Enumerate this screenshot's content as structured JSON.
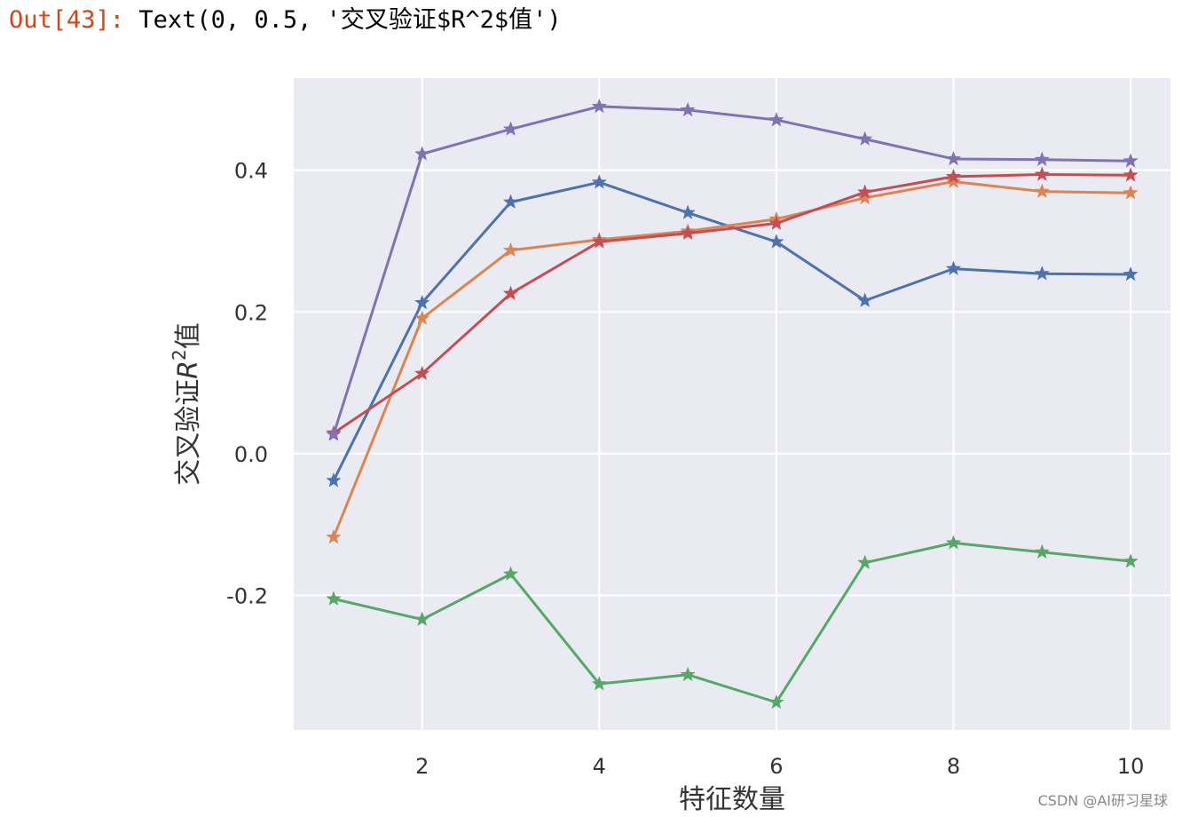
{
  "output": {
    "prompt": "Out[43]:",
    "text": "Text(0, 0.5, '交叉验证$R^2$值')"
  },
  "watermark": "CSDN @AI研习星球",
  "chart_data": {
    "type": "line",
    "xlabel": "特征数量",
    "ylabel_main": "交叉验证",
    "ylabel_italic": "R",
    "ylabel_sup": "2",
    "ylabel_end": "值",
    "xlim": [
      0.55,
      10.45
    ],
    "ylim": [
      -0.39,
      0.53
    ],
    "x_ticks": [
      2,
      4,
      6,
      8,
      10
    ],
    "y_ticks": [
      -0.2,
      0.0,
      0.2,
      0.4
    ],
    "y_tick_labels": [
      "-0.2",
      "0.0",
      "0.2",
      "0.4"
    ],
    "grid": true,
    "marker": "star",
    "background": "#eaeaf2",
    "x": [
      1,
      2,
      3,
      4,
      5,
      6,
      7,
      8,
      9,
      10
    ],
    "series": [
      {
        "color": "#4c72b0",
        "values": [
          -0.038,
          0.213,
          0.355,
          0.383,
          0.34,
          0.299,
          0.216,
          0.261,
          0.254,
          0.253
        ]
      },
      {
        "color": "#dd8452",
        "values": [
          -0.118,
          0.191,
          0.287,
          0.302,
          0.314,
          0.331,
          0.361,
          0.384,
          0.37,
          0.368
        ]
      },
      {
        "color": "#55a868",
        "values": [
          -0.205,
          -0.234,
          -0.17,
          -0.325,
          -0.312,
          -0.351,
          -0.154,
          -0.126,
          -0.139,
          -0.152
        ]
      },
      {
        "color": "#c44e52",
        "values": [
          0.029,
          0.113,
          0.226,
          0.299,
          0.311,
          0.325,
          0.369,
          0.391,
          0.394,
          0.393
        ]
      },
      {
        "color": "#8172b3",
        "values": [
          0.027,
          0.423,
          0.458,
          0.49,
          0.485,
          0.471,
          0.444,
          0.416,
          0.415,
          0.413
        ]
      }
    ]
  }
}
